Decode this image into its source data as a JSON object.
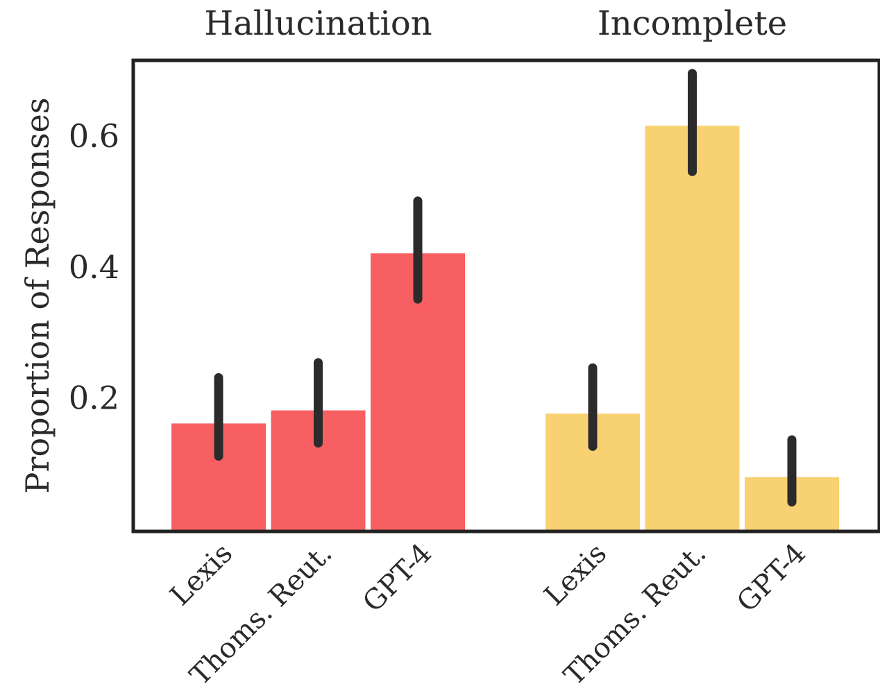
{
  "chart_data": {
    "type": "bar",
    "title": "",
    "xlabel": "",
    "ylabel": "Proportion of Responses",
    "ylim": [
      0,
      0.72
    ],
    "yticks": [
      0.2,
      0.4,
      0.6
    ],
    "ytick_labels": [
      "0.2",
      "0.4",
      "0.6"
    ],
    "grid": false,
    "error_bars": true,
    "groups": [
      {
        "name": "Hallucination",
        "color": "#f85f62",
        "categories": [
          "Lexis",
          "Thoms. Reut.",
          "GPT-4"
        ],
        "values": [
          0.165,
          0.185,
          0.425
        ],
        "error_low": [
          0.115,
          0.135,
          0.355
        ],
        "error_high": [
          0.235,
          0.258,
          0.505
        ]
      },
      {
        "name": "Incomplete",
        "color": "#f7d172",
        "categories": [
          "Lexis",
          "Thoms. Reut.",
          "GPT-4"
        ],
        "values": [
          0.18,
          0.62,
          0.083
        ],
        "error_low": [
          0.13,
          0.55,
          0.045
        ],
        "error_high": [
          0.25,
          0.7,
          0.14
        ]
      }
    ]
  }
}
